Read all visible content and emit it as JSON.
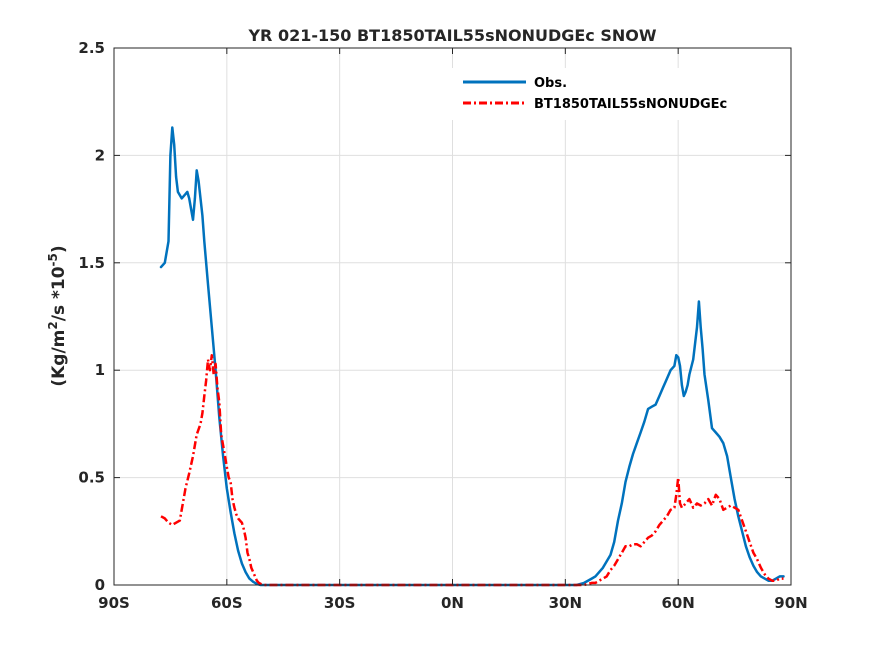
{
  "chart_data": {
    "type": "line",
    "title": "YR 021-150 BT1850TAIL55sNONUDGEc SNOW",
    "xlabel": "",
    "ylabel": "(Kg/m²/s *10⁻⁵)",
    "ylabel_parts": {
      "part1": "(Kg/m",
      "sup1": "2",
      "part2": "/s *10",
      "sup2": "-5",
      "part3": ")"
    },
    "xlim": [
      -90,
      90
    ],
    "ylim": [
      0,
      2.5
    ],
    "xticks": [
      -90,
      -60,
      -30,
      0,
      30,
      60,
      90
    ],
    "xtick_labels": [
      "90S",
      "60S",
      "30S",
      "0N",
      "30N",
      "60N",
      "90N"
    ],
    "yticks": [
      0,
      0.5,
      1,
      1.5,
      2,
      2.5
    ],
    "ytick_labels": [
      "0",
      "0.5",
      "1",
      "1.5",
      "2",
      "2.5"
    ],
    "grid": true,
    "legend_position": "top-right",
    "series": [
      {
        "name": "Obs.",
        "color": "#0072bd",
        "style": "solid",
        "x": [
          -77.5,
          -76.5,
          -75.5,
          -75,
          -74.5,
          -74,
          -73.5,
          -73,
          -72,
          -71,
          -70.5,
          -70,
          -69.5,
          -69,
          -68.5,
          -68,
          -67.5,
          -67,
          -66.5,
          -66,
          -65,
          -64,
          -63,
          -62,
          -61,
          -60,
          -59,
          -58,
          -57,
          -56,
          -55,
          -54,
          -53,
          -52,
          -51,
          -50,
          -49,
          -48,
          -47,
          -46,
          -30,
          0,
          30,
          33,
          35,
          37,
          38,
          40,
          42,
          43,
          44,
          45,
          46,
          47,
          48,
          49,
          50,
          51,
          52,
          53,
          54,
          55,
          56,
          57,
          58,
          59,
          59.5,
          60,
          60.5,
          61,
          61.5,
          62,
          62.5,
          63,
          64,
          65,
          65.5,
          66,
          66.5,
          67,
          67.5,
          68,
          69,
          70,
          71,
          72,
          73,
          74,
          75,
          76,
          77,
          78,
          79,
          80,
          81,
          82,
          83,
          84,
          85,
          86,
          87,
          88
        ],
        "y": [
          1.48,
          1.5,
          1.6,
          2.0,
          2.13,
          2.05,
          1.9,
          1.83,
          1.8,
          1.82,
          1.83,
          1.8,
          1.75,
          1.7,
          1.8,
          1.93,
          1.88,
          1.8,
          1.72,
          1.6,
          1.4,
          1.2,
          1.0,
          0.78,
          0.6,
          0.45,
          0.34,
          0.24,
          0.16,
          0.1,
          0.06,
          0.03,
          0.015,
          0.005,
          0.0,
          0.0,
          0.0,
          0.0,
          0.0,
          0.0,
          0.0,
          0.0,
          0.0,
          0.0,
          0.01,
          0.03,
          0.04,
          0.08,
          0.14,
          0.2,
          0.3,
          0.38,
          0.48,
          0.55,
          0.61,
          0.66,
          0.71,
          0.76,
          0.82,
          0.83,
          0.84,
          0.88,
          0.92,
          0.96,
          1.0,
          1.02,
          1.07,
          1.06,
          1.02,
          0.93,
          0.88,
          0.9,
          0.93,
          0.98,
          1.05,
          1.2,
          1.32,
          1.2,
          1.1,
          0.98,
          0.92,
          0.86,
          0.73,
          0.71,
          0.69,
          0.66,
          0.6,
          0.5,
          0.4,
          0.32,
          0.25,
          0.18,
          0.13,
          0.09,
          0.06,
          0.04,
          0.03,
          0.02,
          0.02,
          0.03,
          0.04,
          0.04
        ],
        "points_plotted": 0
      },
      {
        "name": "BT1850TAIL55sNONUDGEc",
        "color": "#ff0000",
        "style": "dashed",
        "x": [
          -77.5,
          -76.5,
          -75.5,
          -74.5,
          -73.5,
          -72.5,
          -72,
          -71.5,
          -71,
          -70,
          -69,
          -68,
          -67,
          -66.5,
          -66,
          -65.5,
          -65,
          -64.5,
          -64,
          -63.5,
          -63,
          -62.5,
          -62,
          -61.5,
          -61,
          -60.5,
          -60,
          -59.5,
          -59,
          -58.5,
          -58,
          -57.5,
          -57,
          -56.5,
          -56,
          -55.5,
          -55,
          -54.5,
          -54,
          -53.5,
          -53,
          -52.5,
          -52,
          -51.5,
          -51,
          -50,
          -49,
          -48,
          -47,
          -46,
          -45,
          -30,
          0,
          30,
          35,
          37,
          38,
          39,
          40,
          41,
          42,
          43,
          44,
          45,
          46,
          47,
          48,
          49,
          50,
          51,
          52,
          53,
          54,
          55,
          56,
          57,
          58,
          59,
          59.5,
          60,
          60.5,
          61,
          62,
          63,
          64,
          65,
          66,
          67,
          68,
          69,
          70,
          71,
          72,
          73,
          74,
          75,
          76,
          77,
          78,
          79,
          80,
          81,
          82,
          83,
          84,
          85,
          86,
          87,
          88
        ],
        "y": [
          0.32,
          0.31,
          0.29,
          0.28,
          0.29,
          0.3,
          0.35,
          0.4,
          0.45,
          0.52,
          0.6,
          0.7,
          0.75,
          0.8,
          0.88,
          0.95,
          1.05,
          1.0,
          1.07,
          0.98,
          1.03,
          0.92,
          0.85,
          0.7,
          0.65,
          0.6,
          0.55,
          0.5,
          0.48,
          0.4,
          0.36,
          0.33,
          0.31,
          0.3,
          0.29,
          0.26,
          0.22,
          0.15,
          0.12,
          0.08,
          0.06,
          0.04,
          0.02,
          0.01,
          0.005,
          0.0,
          0.0,
          0.0,
          0.0,
          0.0,
          0.0,
          0.0,
          0.0,
          0.0,
          0.0,
          0.01,
          0.01,
          0.02,
          0.03,
          0.04,
          0.07,
          0.09,
          0.12,
          0.15,
          0.18,
          0.18,
          0.19,
          0.19,
          0.18,
          0.2,
          0.22,
          0.23,
          0.25,
          0.28,
          0.3,
          0.32,
          0.35,
          0.36,
          0.42,
          0.5,
          0.38,
          0.36,
          0.38,
          0.4,
          0.36,
          0.38,
          0.37,
          0.38,
          0.4,
          0.37,
          0.42,
          0.4,
          0.35,
          0.36,
          0.37,
          0.36,
          0.35,
          0.3,
          0.25,
          0.2,
          0.15,
          0.12,
          0.08,
          0.05,
          0.03,
          0.02,
          0.02,
          0.03,
          0.03
        ]
      }
    ]
  }
}
